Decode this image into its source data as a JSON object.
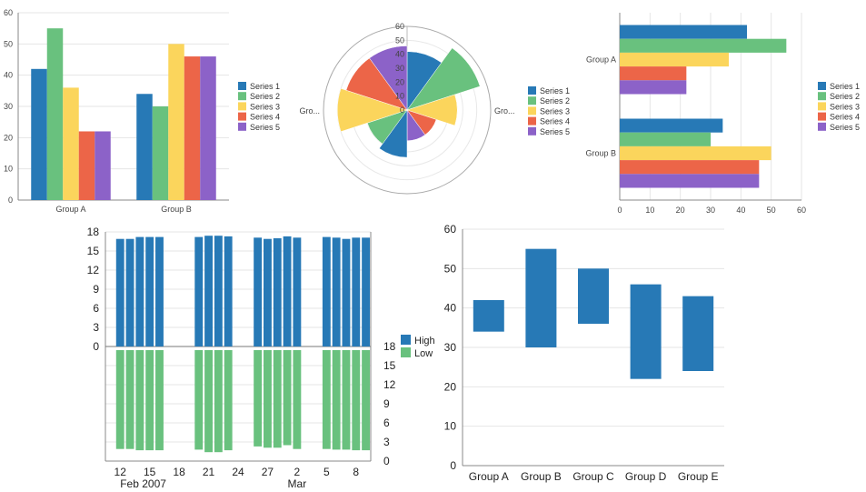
{
  "colors": {
    "series": [
      "#2779b6",
      "#69c17e",
      "#fbd55c",
      "#ec6548",
      "#8c62c8"
    ],
    "high": "#2779b6",
    "low": "#69c17e",
    "axis": "#888888",
    "grid": "#e6e6e6"
  },
  "chart_data": [
    {
      "type": "bar",
      "orientation": "vertical",
      "categories": [
        "Group A",
        "Group B"
      ],
      "series": [
        {
          "name": "Series 1",
          "values": [
            42,
            34
          ]
        },
        {
          "name": "Series 2",
          "values": [
            55,
            30
          ]
        },
        {
          "name": "Series 3",
          "values": [
            36,
            50
          ]
        },
        {
          "name": "Series 4",
          "values": [
            22,
            46
          ]
        },
        {
          "name": "Series 5",
          "values": [
            22,
            46
          ]
        }
      ],
      "ylim": [
        0,
        60
      ],
      "yticks": [
        "0",
        "10",
        "20",
        "30",
        "40",
        "50",
        "60"
      ],
      "grid": true,
      "legend": "right"
    },
    {
      "type": "polar-area",
      "categories": [
        "Gro...",
        "Gro..."
      ],
      "series": [
        {
          "name": "Series 1",
          "values": [
            42,
            34
          ]
        },
        {
          "name": "Series 2",
          "values": [
            55,
            30
          ]
        },
        {
          "name": "Series 3",
          "values": [
            36,
            50
          ]
        },
        {
          "name": "Series 4",
          "values": [
            22,
            46
          ]
        },
        {
          "name": "Series 5",
          "values": [
            22,
            46
          ]
        }
      ],
      "rlim": [
        0,
        60
      ],
      "rticks": [
        "0",
        "10",
        "20",
        "30",
        "40",
        "50",
        "60"
      ],
      "legend": "right"
    },
    {
      "type": "bar",
      "orientation": "horizontal",
      "categories": [
        "Group A",
        "Group B"
      ],
      "series": [
        {
          "name": "Series 1",
          "values": [
            42,
            34
          ]
        },
        {
          "name": "Series 2",
          "values": [
            55,
            30
          ]
        },
        {
          "name": "Series 3",
          "values": [
            36,
            50
          ]
        },
        {
          "name": "Series 4",
          "values": [
            22,
            46
          ]
        },
        {
          "name": "Series 5",
          "values": [
            22,
            46
          ]
        }
      ],
      "xlim": [
        0,
        60
      ],
      "xticks": [
        "0",
        "10",
        "20",
        "30",
        "40",
        "50",
        "60"
      ],
      "grid": true,
      "legend": "right"
    },
    {
      "type": "bar",
      "layout": "two stacked panels sharing a date axis",
      "x": [
        "2007-02-12",
        "2007-02-13",
        "2007-02-14",
        "2007-02-15",
        "2007-02-16",
        "2007-02-20",
        "2007-02-21",
        "2007-02-22",
        "2007-02-23",
        "2007-02-26",
        "2007-02-27",
        "2007-02-28",
        "2007-03-01",
        "2007-03-02",
        "2007-03-05",
        "2007-03-06",
        "2007-03-07",
        "2007-03-08",
        "2007-03-09"
      ],
      "series": [
        {
          "name": "High",
          "panel": "top",
          "values": [
            16.9,
            16.9,
            17.2,
            17.2,
            17.2,
            17.2,
            17.4,
            17.4,
            17.3,
            17.1,
            16.9,
            17.0,
            17.3,
            17.1,
            17.2,
            17.1,
            16.9,
            17.1,
            17.1
          ]
        },
        {
          "name": "Low",
          "panel": "bottom",
          "values": [
            16.1,
            16.1,
            16.3,
            16.3,
            16.3,
            16.2,
            16.6,
            16.6,
            16.3,
            15.7,
            15.9,
            15.9,
            15.5,
            16.1,
            16.1,
            16.2,
            16.2,
            16.3,
            16.3
          ]
        }
      ],
      "ylim": [
        0,
        18
      ],
      "yticks": [
        "0",
        "3",
        "6",
        "9",
        "12",
        "15",
        "18"
      ],
      "xtick_labels": [
        "12",
        "15",
        "18",
        "21",
        "24",
        "27",
        "2",
        "5",
        "8"
      ],
      "xtick_dates": [
        "2007-02-12",
        "2007-02-15",
        "2007-02-18",
        "2007-02-21",
        "2007-02-24",
        "2007-02-27",
        "2007-03-02",
        "2007-03-05",
        "2007-03-08"
      ],
      "month_labels": [
        {
          "text": "Feb 2007",
          "date": "2007-02-12"
        },
        {
          "text": "Mar",
          "date": "2007-03-02"
        }
      ],
      "grid": true,
      "legend": "right"
    },
    {
      "type": "floating-bar",
      "categories": [
        "Group A",
        "Group B",
        "Group C",
        "Group D",
        "Group E"
      ],
      "low": [
        34,
        30,
        36,
        22,
        24
      ],
      "high": [
        42,
        55,
        50,
        46,
        43
      ],
      "ylim": [
        0,
        60
      ],
      "yticks": [
        "0",
        "10",
        "20",
        "30",
        "40",
        "50",
        "60"
      ],
      "grid": true
    }
  ]
}
